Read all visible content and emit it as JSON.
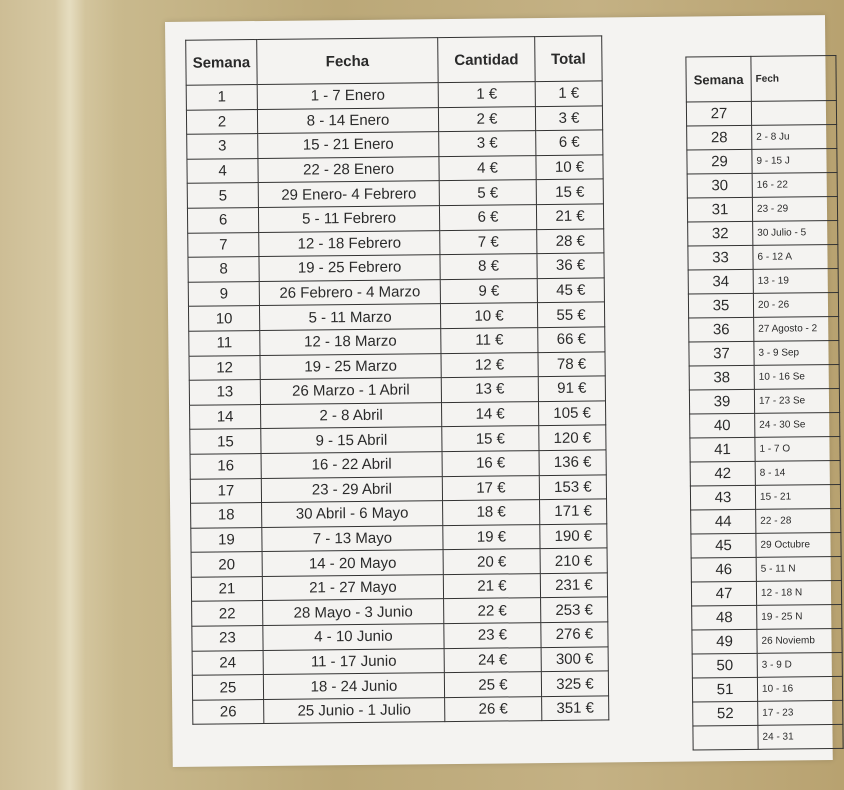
{
  "left_table": {
    "headers": [
      "Semana",
      "Fecha",
      "Cantidad",
      "Total"
    ],
    "rows": [
      [
        "1",
        "1 - 7 Enero",
        "1 €",
        "1 €"
      ],
      [
        "2",
        "8 - 14 Enero",
        "2 €",
        "3 €"
      ],
      [
        "3",
        "15 - 21 Enero",
        "3 €",
        "6 €"
      ],
      [
        "4",
        "22 - 28 Enero",
        "4 €",
        "10 €"
      ],
      [
        "5",
        "29 Enero- 4 Febrero",
        "5 €",
        "15 €"
      ],
      [
        "6",
        "5 - 11 Febrero",
        "6 €",
        "21 €"
      ],
      [
        "7",
        "12 - 18 Febrero",
        "7 €",
        "28 €"
      ],
      [
        "8",
        "19 - 25 Febrero",
        "8 €",
        "36 €"
      ],
      [
        "9",
        "26 Febrero - 4 Marzo",
        "9 €",
        "45 €"
      ],
      [
        "10",
        "5 - 11 Marzo",
        "10 €",
        "55 €"
      ],
      [
        "11",
        "12 - 18 Marzo",
        "11 €",
        "66 €"
      ],
      [
        "12",
        "19 - 25 Marzo",
        "12 €",
        "78 €"
      ],
      [
        "13",
        "26 Marzo - 1 Abril",
        "13 €",
        "91 €"
      ],
      [
        "14",
        "2 - 8 Abril",
        "14 €",
        "105 €"
      ],
      [
        "15",
        "9 - 15 Abril",
        "15 €",
        "120 €"
      ],
      [
        "16",
        "16 - 22 Abril",
        "16 €",
        "136 €"
      ],
      [
        "17",
        "23 - 29 Abril",
        "17 €",
        "153 €"
      ],
      [
        "18",
        "30 Abril - 6 Mayo",
        "18 €",
        "171 €"
      ],
      [
        "19",
        "7 - 13 Mayo",
        "19 €",
        "190 €"
      ],
      [
        "20",
        "14 - 20 Mayo",
        "20 €",
        "210 €"
      ],
      [
        "21",
        "21 - 27 Mayo",
        "21 €",
        "231 €"
      ],
      [
        "22",
        "28 Mayo - 3 Junio",
        "22 €",
        "253 €"
      ],
      [
        "23",
        "4 - 10 Junio",
        "23 €",
        "276 €"
      ],
      [
        "24",
        "11 - 17 Junio",
        "24 €",
        "300 €"
      ],
      [
        "25",
        "18 - 24 Junio",
        "25 €",
        "325 €"
      ],
      [
        "26",
        "25 Junio - 1 Julio",
        "26 €",
        "351 €"
      ]
    ]
  },
  "right_table": {
    "headers": [
      "Semana",
      "Fech"
    ],
    "rows": [
      [
        "27",
        ""
      ],
      [
        "28",
        "2 - 8 Ju"
      ],
      [
        "29",
        "9 - 15 J"
      ],
      [
        "30",
        "16 - 22"
      ],
      [
        "31",
        "23 - 29"
      ],
      [
        "32",
        "30 Julio - 5"
      ],
      [
        "33",
        "6 - 12 A"
      ],
      [
        "34",
        "13 - 19"
      ],
      [
        "35",
        "20 - 26"
      ],
      [
        "36",
        "27 Agosto - 2"
      ],
      [
        "37",
        "3 - 9 Sep"
      ],
      [
        "38",
        "10 - 16 Se"
      ],
      [
        "39",
        "17 - 23 Se"
      ],
      [
        "40",
        "24 - 30 Se"
      ],
      [
        "41",
        "1 - 7 O"
      ],
      [
        "42",
        "8 - 14"
      ],
      [
        "43",
        "15 - 21"
      ],
      [
        "44",
        "22 - 28"
      ],
      [
        "45",
        "29 Octubre"
      ],
      [
        "46",
        "5 - 11 N"
      ],
      [
        "47",
        "12 - 18 N"
      ],
      [
        "48",
        "19 - 25 N"
      ],
      [
        "49",
        "26 Noviemb"
      ],
      [
        "50",
        "3 - 9 D"
      ],
      [
        "51",
        "10 - 16"
      ],
      [
        "52",
        "17 - 23"
      ]
    ],
    "trailing_fecha": "24 - 31"
  }
}
